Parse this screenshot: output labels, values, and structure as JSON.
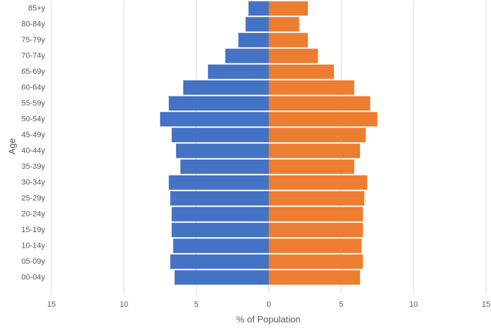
{
  "chart_data": {
    "type": "pyramid",
    "x_label": "% of Population",
    "y_label": "Age",
    "categories": [
      "85+y",
      "80-84y",
      "75-79y",
      "70-74y",
      "65-69y",
      "60-64y",
      "55-59y",
      "50-54y",
      "45-49y",
      "40-44y",
      "35-39y",
      "30-34y",
      "25-29y",
      "20-24y",
      "15-19y",
      "10-14y",
      "05-09y",
      "00-04y"
    ],
    "series": [
      {
        "color": "#4472c4",
        "values": [
          -1.4,
          -1.6,
          -2.1,
          -3.0,
          -4.2,
          -5.9,
          -6.9,
          -7.5,
          -6.7,
          -6.4,
          -6.1,
          -6.9,
          -6.8,
          -6.7,
          -6.7,
          -6.6,
          -6.8,
          -6.5
        ]
      },
      {
        "color": "#ed7d31",
        "values": [
          2.7,
          2.1,
          2.7,
          3.4,
          4.5,
          5.9,
          7.0,
          7.5,
          6.7,
          6.3,
          5.9,
          6.8,
          6.6,
          6.5,
          6.5,
          6.4,
          6.5,
          6.3
        ]
      }
    ],
    "xlim": [
      -15,
      15
    ],
    "xticks": [
      {
        "value": -15,
        "label": "15"
      },
      {
        "value": -10,
        "label": "10"
      },
      {
        "value": -5,
        "label": "5"
      },
      0,
      5,
      10,
      15
    ],
    "grid": true
  }
}
